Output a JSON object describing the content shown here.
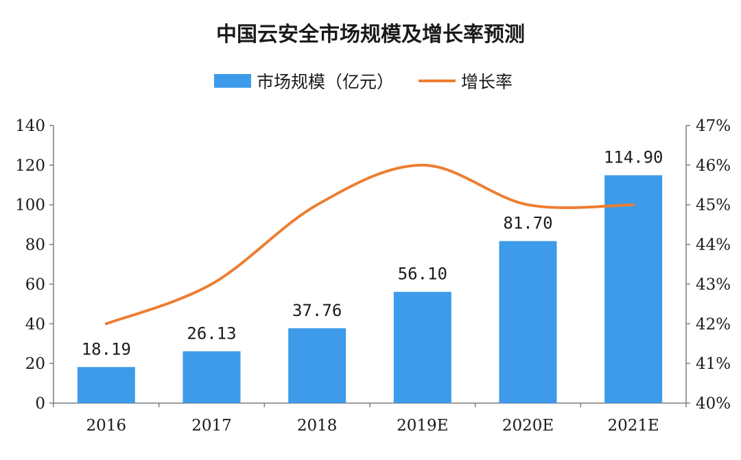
{
  "chart_data": {
    "type": "bar",
    "title": "中国云安全市场规模及增长率预测",
    "categories": [
      "2016",
      "2017",
      "2018",
      "2019E",
      "2020E",
      "2021E"
    ],
    "series": [
      {
        "name": "市场规模（亿元）",
        "type": "bar",
        "axis": "left",
        "values": [
          18.19,
          26.13,
          37.76,
          56.1,
          81.7,
          114.9
        ],
        "value_labels": [
          "18.19",
          "26.13",
          "37.76",
          "56.10",
          "81.70",
          "114.90"
        ],
        "color": "#3d9be9"
      },
      {
        "name": "增长率",
        "type": "line",
        "axis": "right",
        "values": [
          42,
          43,
          45,
          46,
          45,
          45
        ],
        "color": "#ed7d31",
        "smooth": true
      }
    ],
    "y_left": {
      "min": 0,
      "max": 140,
      "ticks": [
        "0",
        "20",
        "40",
        "60",
        "80",
        "100",
        "120",
        "140"
      ]
    },
    "y_right": {
      "min": 40,
      "max": 47,
      "ticks": [
        "40%",
        "41%",
        "42%",
        "43%",
        "44%",
        "45%",
        "46%",
        "47%"
      ]
    },
    "legend": "top",
    "grid": false
  }
}
